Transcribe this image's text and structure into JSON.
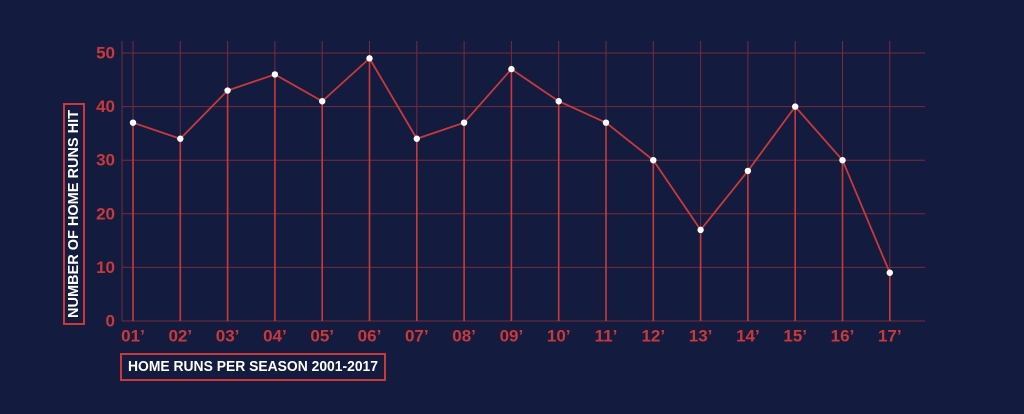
{
  "colors": {
    "background": "#131c3f",
    "accent": "#c9393a",
    "grid": "#7a2a3a",
    "point": "#ffffff"
  },
  "chart_data": {
    "type": "line",
    "title": "",
    "xlabel": "HOME RUNS PER SEASON 2001-2017",
    "ylabel": "NUMBER OF HOME RUNS HIT",
    "categories": [
      "01’",
      "02’",
      "03’",
      "04’",
      "05’",
      "06’",
      "07’",
      "08’",
      "09’",
      "10’",
      "11’",
      "12’",
      "13’",
      "14’",
      "15’",
      "16’",
      "17’"
    ],
    "series": [
      {
        "name": "",
        "values": [
          37,
          34,
          43,
          46,
          41,
          49,
          34,
          37,
          47,
          41,
          37,
          30,
          17,
          28,
          40,
          30,
          9
        ]
      }
    ],
    "yticks": [
      "0",
      "10",
      "20",
      "30",
      "40",
      "50"
    ],
    "ylim": [
      0,
      50
    ],
    "grid": true,
    "drop_lines": true,
    "legend": "none"
  }
}
